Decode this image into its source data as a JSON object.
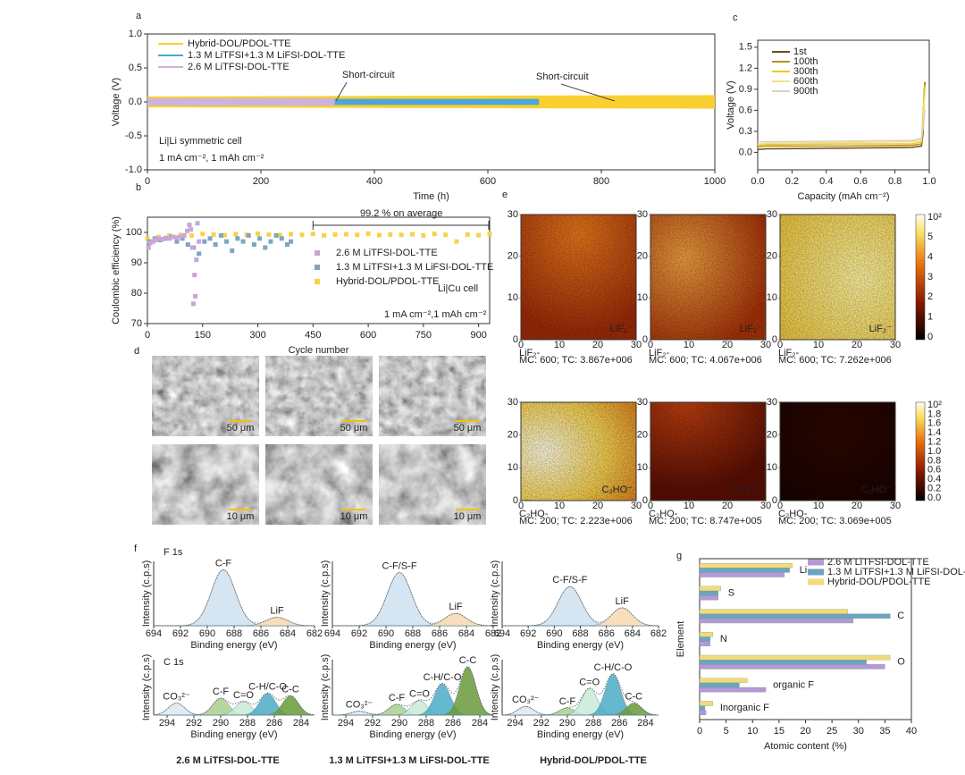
{
  "chart_data": [
    {
      "type": "band",
      "panel": "a",
      "xlabel": "Time (h)",
      "ylabel": "Voltage (V)",
      "xlim": [
        0,
        1000
      ],
      "ylim": [
        -1,
        1
      ],
      "xticks": [
        0,
        200,
        400,
        600,
        800,
        1000
      ],
      "yticks": [
        {
          "value": -1,
          "label": "-1.0"
        },
        -0.5,
        {
          "value": 0,
          "label": "0.0"
        },
        0.5,
        {
          "value": 1,
          "label": "1.0"
        }
      ],
      "series": [
        {
          "name": "Hybrid-DOL/PDOL-TTE",
          "color": "#f9d030",
          "x": [
            0,
            1000
          ],
          "low": [
            -0.08,
            -0.1
          ],
          "high": [
            0.08,
            0.1
          ]
        },
        {
          "name": "1.3 M LiTFSI+1.3 M LiFSI-DOL-TTE",
          "color": "#4aa6dc",
          "x": [
            0,
            690
          ],
          "low": [
            -0.045,
            -0.045
          ],
          "high": [
            0.045,
            0.045
          ]
        },
        {
          "name": "2.6 M LiTFSI-DOL-TTE",
          "color": "#cdb3dc",
          "x": [
            0,
            330
          ],
          "low": [
            -0.055,
            -0.055
          ],
          "high": [
            0.055,
            0.055
          ]
        }
      ],
      "annotations": [
        "Short-circuit",
        "Short-circuit",
        "Li|Li symmetric cell",
        "1 mA cm⁻², 1 mAh cm⁻²"
      ],
      "legend": "upper left"
    },
    {
      "type": "scatter",
      "panel": "b",
      "xlabel": "Cycle number",
      "ylabel": "Coulombic efficiency (%)",
      "xlim": [
        0,
        930
      ],
      "ylim": [
        70,
        105
      ],
      "xticks": [
        0,
        150,
        300,
        450,
        600,
        750,
        900
      ],
      "yticks": [
        70,
        80,
        90,
        100
      ],
      "series": [
        {
          "name": "2.6 M LiTFSI-DOL-TTE",
          "color": "#c9a6d8",
          "x": [
            3,
            8,
            15,
            22,
            30,
            40,
            50,
            60,
            70,
            80,
            90,
            100,
            108,
            114,
            118,
            122,
            125,
            128,
            130,
            133,
            136,
            140
          ],
          "values": [
            95,
            96.5,
            97,
            97.5,
            98,
            97.8,
            98.2,
            98,
            98.5,
            98.3,
            98.6,
            99,
            100.5,
            102.5,
            101,
            95,
            76.5,
            86,
            79,
            91,
            103,
            97
          ]
        },
        {
          "name": "1.3 M LiTFSI+1.3 M LiFSI-DOL-TTE",
          "color": "#7fa6bf",
          "x": [
            5,
            20,
            35,
            50,
            65,
            80,
            95,
            110,
            125,
            140,
            155,
            170,
            185,
            200,
            215,
            230,
            245,
            260,
            275,
            290,
            305,
            320,
            335,
            350,
            365,
            380,
            390
          ],
          "values": [
            97,
            98,
            97.5,
            98,
            98.5,
            97,
            98,
            96,
            95,
            93,
            97,
            98,
            96,
            99,
            97,
            94,
            98,
            97,
            99,
            96,
            98,
            95,
            97,
            99,
            98,
            96,
            97
          ]
        },
        {
          "name": "Hybrid-DOL/PDOL-TTE",
          "color": "#f7d24a",
          "x": [
            0,
            30,
            60,
            90,
            120,
            150,
            180,
            210,
            240,
            270,
            300,
            330,
            360,
            390,
            420,
            450,
            480,
            510,
            540,
            570,
            600,
            630,
            660,
            690,
            720,
            750,
            780,
            810,
            840,
            870,
            900,
            930
          ],
          "values": [
            98,
            98.5,
            99,
            99.2,
            99,
            99.5,
            99.3,
            99.1,
            99.4,
            99.2,
            99.6,
            99.3,
            99.1,
            99.4,
            99.2,
            99.5,
            99.0,
            99.3,
            99.4,
            99.2,
            99.6,
            99.1,
            99.3,
            99.2,
            99.4,
            99.0,
            99.5,
            99.2,
            97,
            99.3,
            99.1,
            99.4
          ]
        }
      ],
      "annotations": [
        "99.2 % on average",
        "Li|Cu cell",
        "1 mA cm⁻²,1 mAh cm⁻²"
      ],
      "legend": "center right"
    },
    {
      "type": "line",
      "panel": "c",
      "xlabel": "Capacity (mAh cm⁻²)",
      "ylabel": "Voltage (V)",
      "xlim": [
        0,
        1
      ],
      "ylim": [
        -0.25,
        1.6
      ],
      "xticks": [
        {
          "value": 0,
          "label": "0.0"
        },
        0.2,
        0.4,
        0.6,
        0.8,
        {
          "value": 1,
          "label": "1.0"
        }
      ],
      "yticks": [
        {
          "value": 0,
          "label": "0.0"
        },
        0.3,
        0.6,
        0.9,
        1.2,
        1.5
      ],
      "series": [
        {
          "name": "1st",
          "color": "#6b4e16",
          "x": [
            0,
            0.05,
            0.5,
            0.9,
            0.955,
            0.965,
            0.97,
            0.975
          ],
          "values": [
            0.04,
            0.05,
            0.06,
            0.07,
            0.09,
            0.3,
            0.8,
            1.0
          ]
        },
        {
          "name": "100th",
          "color": "#b89020",
          "x": [
            0,
            0.05,
            0.5,
            0.9,
            0.955,
            0.965,
            0.97,
            0.975
          ],
          "values": [
            0.08,
            0.09,
            0.09,
            0.1,
            0.12,
            0.5,
            0.9,
            0.98
          ]
        },
        {
          "name": "300th",
          "color": "#f0c820",
          "x": [
            0,
            0.05,
            0.5,
            0.9,
            0.955,
            0.965,
            0.97,
            0.975
          ],
          "values": [
            0.1,
            0.11,
            0.12,
            0.12,
            0.15,
            0.6,
            0.85,
            0.95
          ]
        },
        {
          "name": "600th",
          "color": "#f2e08a",
          "x": [
            0,
            0.05,
            0.5,
            0.9,
            0.955,
            0.965,
            0.97,
            0.975
          ],
          "values": [
            0.12,
            0.13,
            0.14,
            0.15,
            0.18,
            0.4,
            0.7,
            0.8
          ]
        },
        {
          "name": "900th",
          "color": "#d9d2c0",
          "x": [
            0,
            0.05,
            0.5,
            0.9,
            0.955,
            0.965,
            0.97,
            0.975
          ],
          "values": [
            0.15,
            0.15,
            0.16,
            0.17,
            0.2,
            0.35,
            0.5,
            0.6
          ]
        }
      ],
      "legend": "upper left"
    },
    {
      "type": "hbar",
      "panel": "g",
      "xlabel": "Atomic content (%)",
      "ylabel": "Element",
      "xlim": [
        0,
        40
      ],
      "xticks": [
        0,
        5,
        10,
        15,
        20,
        25,
        30,
        35,
        40
      ],
      "categories": [
        "Li",
        "S",
        "C",
        "N",
        "O",
        "organic F",
        "Inorganic F"
      ],
      "series": [
        {
          "name": "2.6 M LiTFSI-DOL-TTE",
          "color": "#b39ad6",
          "values": [
            16,
            3.5,
            29,
            2,
            35,
            12.5,
            1.2
          ]
        },
        {
          "name": "1.3 M LiTFSI+1.3 M LiFSI-DOL-TTE",
          "color": "#6ba5c0",
          "values": [
            17,
            3.5,
            36,
            2,
            31.5,
            7.5,
            1
          ]
        },
        {
          "name": "Hybrid-DOL/PDOL-TTE",
          "color": "#f0dc78",
          "values": [
            17.5,
            4,
            28,
            2.5,
            36,
            9,
            2.5
          ]
        }
      ],
      "legend": "upper right"
    },
    {
      "type": "xps",
      "panel": "f",
      "xlabel": "Binding energy (eV)",
      "ylabel": "Intensity (c.p.s)",
      "samples": [
        "2.6 M LiTFSI-DOL-TTE",
        "1.3 M LiTFSI+1.3 M LiFSI-DOL-TTE",
        "Hybrid-DOL/PDOL-TTE"
      ],
      "rows": [
        {
          "name": "F 1s",
          "xlim": [
            694,
            682
          ],
          "ylim": [
            0,
            1.15
          ],
          "xticks": [
            694,
            692,
            690,
            688,
            686,
            684,
            682
          ],
          "spectra": [
            {
              "peaks": [
                {
                  "label": "C-F",
                  "center": 688.8,
                  "height": 1.0,
                  "width": 0.9,
                  "color": "#cfe0f0"
                },
                {
                  "label": "LiF",
                  "center": 684.8,
                  "height": 0.15,
                  "width": 0.8,
                  "color": "#f8d8b0"
                }
              ]
            },
            {
              "peaks": [
                {
                  "label": "C-F/S-F",
                  "center": 689,
                  "height": 0.95,
                  "width": 0.9,
                  "color": "#cfe0f0"
                },
                {
                  "label": "LiF",
                  "center": 684.8,
                  "height": 0.22,
                  "width": 0.8,
                  "color": "#f8d8b0"
                }
              ]
            },
            {
              "peaks": [
                {
                  "label": "C-F/S-F",
                  "center": 688.8,
                  "height": 0.7,
                  "width": 0.9,
                  "color": "#cfe0f0"
                },
                {
                  "label": "LiF",
                  "center": 684.8,
                  "height": 0.32,
                  "width": 0.8,
                  "color": "#f8d8b0"
                }
              ]
            }
          ]
        },
        {
          "name": "C 1s",
          "xlim": [
            295,
            283
          ],
          "ylim": [
            0,
            1.15
          ],
          "xticks": [
            294,
            292,
            290,
            288,
            286,
            284
          ],
          "spectra": [
            {
              "peaks": [
                {
                  "label": "CO₃²⁻",
                  "center": 293.3,
                  "height": 0.25,
                  "width": 0.6,
                  "color": "#dde8f0"
                },
                {
                  "label": "C-F",
                  "center": 290,
                  "height": 0.35,
                  "width": 0.6,
                  "color": "#a8d08d"
                },
                {
                  "label": "C=O",
                  "center": 288.3,
                  "height": 0.28,
                  "width": 0.6,
                  "color": "#c8ead8"
                },
                {
                  "label": "C-H/C-O",
                  "center": 286.5,
                  "height": 0.45,
                  "width": 0.6,
                  "color": "#4bacc6"
                },
                {
                  "label": "C-C",
                  "center": 284.8,
                  "height": 0.4,
                  "width": 0.6,
                  "color": "#6a9a3a"
                }
              ]
            },
            {
              "peaks": [
                {
                  "label": "CO₃²⁻",
                  "center": 293,
                  "height": 0.08,
                  "width": 0.6,
                  "color": "#dde8f0"
                },
                {
                  "label": "C-F",
                  "center": 290.2,
                  "height": 0.22,
                  "width": 0.6,
                  "color": "#a8d08d"
                },
                {
                  "label": "C=O",
                  "center": 288.5,
                  "height": 0.3,
                  "width": 0.6,
                  "color": "#c8ead8"
                },
                {
                  "label": "C-H/C-O",
                  "center": 286.8,
                  "height": 0.65,
                  "width": 0.6,
                  "color": "#4bacc6"
                },
                {
                  "label": "C-C",
                  "center": 284.9,
                  "height": 1.0,
                  "width": 0.6,
                  "color": "#6a9a3a"
                }
              ]
            },
            {
              "peaks": [
                {
                  "label": "CO₃²⁻",
                  "center": 293.2,
                  "height": 0.18,
                  "width": 0.6,
                  "color": "#dde8f0"
                },
                {
                  "label": "C-F",
                  "center": 290,
                  "height": 0.15,
                  "width": 0.6,
                  "color": "#a8d08d"
                },
                {
                  "label": "C=O",
                  "center": 288.3,
                  "height": 0.55,
                  "width": 0.6,
                  "color": "#c8ead8"
                },
                {
                  "label": "C-H/C-O",
                  "center": 286.5,
                  "height": 0.85,
                  "width": 0.6,
                  "color": "#4bacc6"
                },
                {
                  "label": "C-C",
                  "center": 284.9,
                  "height": 0.25,
                  "width": 0.6,
                  "color": "#6a9a3a"
                }
              ]
            }
          ]
        }
      ]
    }
  ],
  "sem": {
    "panel": "d",
    "scale_labels": [
      "50 μm",
      "50 μm",
      "50 μm",
      "10 μm",
      "10 μm",
      "10 μm"
    ]
  },
  "tof_sims": {
    "panel": "e",
    "axis_ticks": [
      0,
      10,
      20,
      30
    ],
    "maps": [
      {
        "ion": "LiF₂⁻",
        "caption_ion": "LiF₂-",
        "caption": "MC:  600; TC: 3.867e+006"
      },
      {
        "ion": "LiF₂⁻",
        "caption_ion": "LiF₂-",
        "caption": "MC:  600; TC: 4.067e+006"
      },
      {
        "ion": "LiF₂⁻",
        "caption_ion": "LiF₂-",
        "caption": "MC:  600; TC: 7.262e+006"
      },
      {
        "ion": "C₂HO⁻",
        "caption_ion": "C₂HO-",
        "caption": "MC:  200; TC: 2.223e+006"
      },
      {
        "ion": "C₂HO⁻",
        "caption_ion": "C₂HO-",
        "caption": "MC:  200; TC: 8.747e+005"
      },
      {
        "ion": "C₂HO⁻",
        "caption_ion": "C₂HO-",
        "caption": "MC:  200; TC: 3.069e+005"
      }
    ],
    "colorbar_labels": [
      [
        "10²",
        "5",
        "4",
        "3",
        "2",
        "1",
        "0"
      ],
      [
        "10²",
        "1.8",
        "1.6",
        "1.4",
        "1.2",
        "1.0",
        "0.8",
        "0.6",
        "0.4",
        "0.2",
        "0.0"
      ]
    ]
  }
}
